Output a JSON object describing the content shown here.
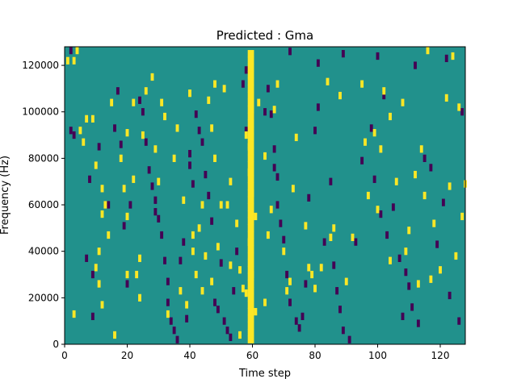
{
  "chart_data": {
    "type": "heatmap",
    "title": "Predicted : Gma",
    "xlabel": "Time step",
    "ylabel": "Frequency (Hz)",
    "xlim": [
      0,
      128
    ],
    "ylim": [
      0,
      128000
    ],
    "xticks": [
      0,
      20,
      40,
      60,
      80,
      100,
      120
    ],
    "xtick_labels": [
      "0",
      "20",
      "40",
      "60",
      "80",
      "100",
      "120"
    ],
    "yticks": [
      0,
      20000,
      40000,
      60000,
      80000,
      100000,
      120000
    ],
    "ytick_labels": [
      "0",
      "20000",
      "40000",
      "60000",
      "80000",
      "100000",
      "120000"
    ],
    "value_levels": [
      -1,
      0,
      1
    ],
    "colors": {
      "low": "#440154",
      "mid": "#21918c",
      "high": "#fde725"
    },
    "background_value": 0,
    "high_cells": [
      [
        1,
        122000
      ],
      [
        4,
        127000
      ],
      [
        3,
        122000
      ],
      [
        5,
        92000
      ],
      [
        6,
        87000
      ],
      [
        10,
        77000
      ],
      [
        12,
        67000
      ],
      [
        13,
        60000
      ],
      [
        14,
        47000
      ],
      [
        11,
        40000
      ],
      [
        10,
        33000
      ],
      [
        11,
        26000
      ],
      [
        12,
        17000
      ],
      [
        3,
        13000
      ],
      [
        15,
        104000
      ],
      [
        19,
        67000
      ],
      [
        20,
        91000
      ],
      [
        20,
        55000
      ],
      [
        22,
        104000
      ],
      [
        22,
        71000
      ],
      [
        23,
        30000
      ],
      [
        24,
        20000
      ],
      [
        24,
        37000
      ],
      [
        30,
        70000
      ],
      [
        26,
        109000
      ],
      [
        29,
        84000
      ],
      [
        31,
        104000
      ],
      [
        32,
        98000
      ],
      [
        33,
        13000
      ],
      [
        35,
        80000
      ],
      [
        37,
        23000
      ],
      [
        38,
        62000
      ],
      [
        39,
        17000
      ],
      [
        40,
        108000
      ],
      [
        41,
        47000
      ],
      [
        41,
        40000
      ],
      [
        42,
        30000
      ],
      [
        43,
        50000
      ],
      [
        44,
        23000
      ],
      [
        45,
        38000
      ],
      [
        46,
        105000
      ],
      [
        47,
        93000
      ],
      [
        48,
        80000
      ],
      [
        47,
        27000
      ],
      [
        49,
        42000
      ],
      [
        50,
        60000
      ],
      [
        51,
        110000
      ],
      [
        52,
        60000
      ],
      [
        53,
        34000
      ],
      [
        55,
        52000
      ],
      [
        56,
        32000
      ],
      [
        56,
        4000
      ],
      [
        57,
        24000
      ],
      [
        58,
        22000
      ],
      [
        58,
        90000
      ],
      [
        59,
        85000
      ],
      [
        59,
        74000
      ],
      [
        60,
        65000
      ],
      [
        61,
        55000
      ],
      [
        59,
        44000
      ],
      [
        60,
        30000
      ],
      [
        61,
        14000
      ],
      [
        62,
        104000
      ],
      [
        64,
        18000
      ],
      [
        65,
        47000
      ],
      [
        66,
        58000
      ],
      [
        68,
        112000
      ],
      [
        70,
        40000
      ],
      [
        71,
        23000
      ],
      [
        72,
        27000
      ],
      [
        73,
        67000
      ],
      [
        77,
        51000
      ],
      [
        78,
        33000
      ],
      [
        80,
        24000
      ],
      [
        82,
        33000
      ],
      [
        84,
        113000
      ],
      [
        86,
        50000
      ],
      [
        88,
        107000
      ],
      [
        90,
        27000
      ],
      [
        92,
        46000
      ],
      [
        95,
        112000
      ],
      [
        97,
        64000
      ],
      [
        100,
        58000
      ],
      [
        102,
        109000
      ],
      [
        104,
        98000
      ],
      [
        106,
        70000
      ],
      [
        108,
        104000
      ],
      [
        110,
        49000
      ],
      [
        112,
        73000
      ],
      [
        114,
        84000
      ],
      [
        116,
        127000
      ],
      [
        118,
        52000
      ],
      [
        120,
        32000
      ],
      [
        123,
        68000
      ],
      [
        125,
        38000
      ],
      [
        127,
        55000
      ],
      [
        122,
        106000
      ],
      [
        126,
        102000
      ],
      [
        128,
        69000
      ],
      [
        113,
        26000
      ],
      [
        104,
        36000
      ],
      [
        101,
        84000
      ],
      [
        99,
        91000
      ],
      [
        115,
        64000
      ],
      [
        7,
        97000
      ],
      [
        9,
        97000
      ],
      [
        18,
        80000
      ],
      [
        16,
        4000
      ],
      [
        28,
        115000
      ],
      [
        25,
        90000
      ],
      [
        36,
        93000
      ],
      [
        48,
        112000
      ],
      [
        53,
        70000
      ],
      [
        64,
        81000
      ],
      [
        67,
        101000
      ],
      [
        74,
        89000
      ],
      [
        79,
        30000
      ],
      [
        85,
        46000
      ],
      [
        96,
        87000
      ],
      [
        109,
        40000
      ],
      [
        117,
        28000
      ],
      [
        124,
        124000
      ],
      [
        12,
        56000
      ],
      [
        20,
        30000
      ],
      [
        44,
        60000
      ]
    ],
    "low_cells": [
      [
        2,
        127000
      ],
      [
        2,
        92000
      ],
      [
        3,
        90000
      ],
      [
        8,
        71000
      ],
      [
        7,
        37000
      ],
      [
        9,
        30000
      ],
      [
        9,
        12000
      ],
      [
        11,
        85000
      ],
      [
        14,
        60000
      ],
      [
        16,
        93000
      ],
      [
        17,
        109000
      ],
      [
        18,
        86000
      ],
      [
        19,
        51000
      ],
      [
        20,
        26000
      ],
      [
        21,
        60000
      ],
      [
        24,
        105000
      ],
      [
        25,
        100000
      ],
      [
        26,
        87000
      ],
      [
        27,
        75000
      ],
      [
        28,
        68000
      ],
      [
        29,
        62000
      ],
      [
        29,
        57000
      ],
      [
        30,
        54000
      ],
      [
        31,
        47000
      ],
      [
        32,
        36000
      ],
      [
        33,
        27000
      ],
      [
        33,
        18000
      ],
      [
        34,
        10000
      ],
      [
        35,
        6000
      ],
      [
        36,
        2000
      ],
      [
        37,
        36000
      ],
      [
        38,
        44000
      ],
      [
        39,
        11000
      ],
      [
        40,
        82000
      ],
      [
        41,
        69000
      ],
      [
        42,
        99000
      ],
      [
        43,
        92000
      ],
      [
        44,
        87000
      ],
      [
        45,
        73000
      ],
      [
        46,
        64000
      ],
      [
        47,
        53000
      ],
      [
        48,
        18000
      ],
      [
        49,
        15000
      ],
      [
        50,
        35000
      ],
      [
        51,
        10000
      ],
      [
        52,
        6000
      ],
      [
        53,
        3000
      ],
      [
        54,
        23000
      ],
      [
        55,
        40000
      ],
      [
        57,
        112000
      ],
      [
        58,
        118000
      ],
      [
        60,
        98000
      ],
      [
        64,
        100000
      ],
      [
        65,
        110000
      ],
      [
        66,
        99000
      ],
      [
        67,
        84000
      ],
      [
        67,
        76000
      ],
      [
        68,
        72000
      ],
      [
        68,
        60000
      ],
      [
        69,
        52000
      ],
      [
        70,
        45000
      ],
      [
        71,
        30000
      ],
      [
        72,
        18000
      ],
      [
        74,
        10000
      ],
      [
        75,
        7000
      ],
      [
        76,
        12000
      ],
      [
        77,
        26000
      ],
      [
        78,
        63000
      ],
      [
        80,
        92000
      ],
      [
        81,
        102000
      ],
      [
        83,
        44000
      ],
      [
        85,
        70000
      ],
      [
        86,
        34000
      ],
      [
        87,
        23000
      ],
      [
        88,
        15000
      ],
      [
        89,
        6000
      ],
      [
        91,
        2000
      ],
      [
        93,
        44000
      ],
      [
        95,
        79000
      ],
      [
        98,
        93000
      ],
      [
        99,
        71000
      ],
      [
        101,
        56000
      ],
      [
        102,
        107000
      ],
      [
        103,
        47000
      ],
      [
        105,
        59000
      ],
      [
        107,
        37000
      ],
      [
        108,
        12000
      ],
      [
        109,
        31000
      ],
      [
        110,
        25000
      ],
      [
        111,
        16000
      ],
      [
        113,
        9000
      ],
      [
        115,
        80000
      ],
      [
        117,
        76000
      ],
      [
        119,
        43000
      ],
      [
        121,
        61000
      ],
      [
        123,
        21000
      ],
      [
        126,
        10000
      ],
      [
        127,
        100000
      ],
      [
        122,
        123000
      ],
      [
        112,
        120000
      ],
      [
        100,
        124000
      ],
      [
        89,
        125000
      ],
      [
        81,
        121000
      ],
      [
        72,
        126000
      ],
      [
        58,
        92000
      ],
      [
        40,
        77000
      ]
    ]
  }
}
